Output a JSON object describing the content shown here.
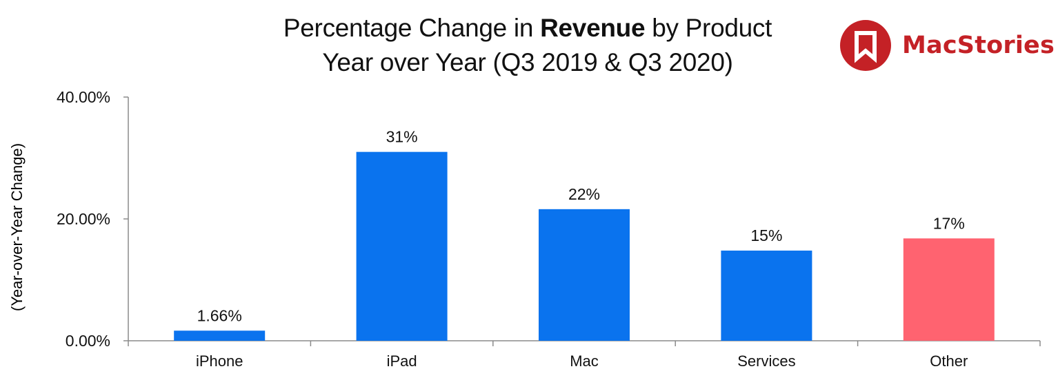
{
  "title": {
    "line1_prefix": "Percentage Change in ",
    "line1_bold": "Revenue",
    "line1_suffix": " by Product",
    "line2": "Year over Year (Q3 2019 & Q3 2020)"
  },
  "logo": {
    "text": "MacStories",
    "icon": "bookmark-icon",
    "color": "#c42126"
  },
  "chart_data": {
    "type": "bar",
    "title": "Percentage Change in Revenue by Product Year over Year (Q3 2019 & Q3 2020)",
    "xlabel": "",
    "ylabel": "(Year-over-Year Change)",
    "categories": [
      "iPhone",
      "iPad",
      "Mac",
      "Services",
      "Other"
    ],
    "values": [
      1.66,
      31.0,
      21.6,
      14.8,
      16.8
    ],
    "data_labels": [
      "1.66%",
      "31%",
      "22%",
      "15%",
      "17%"
    ],
    "colors": [
      "#0a73ee",
      "#0a73ee",
      "#0a73ee",
      "#0a73ee",
      "#ff6370"
    ],
    "ylim": [
      0,
      40
    ],
    "yticks": [
      0,
      20,
      40
    ],
    "ytick_labels": [
      "0.00%",
      "20.00%",
      "40.00%"
    ],
    "grid": false,
    "legend": "none"
  }
}
